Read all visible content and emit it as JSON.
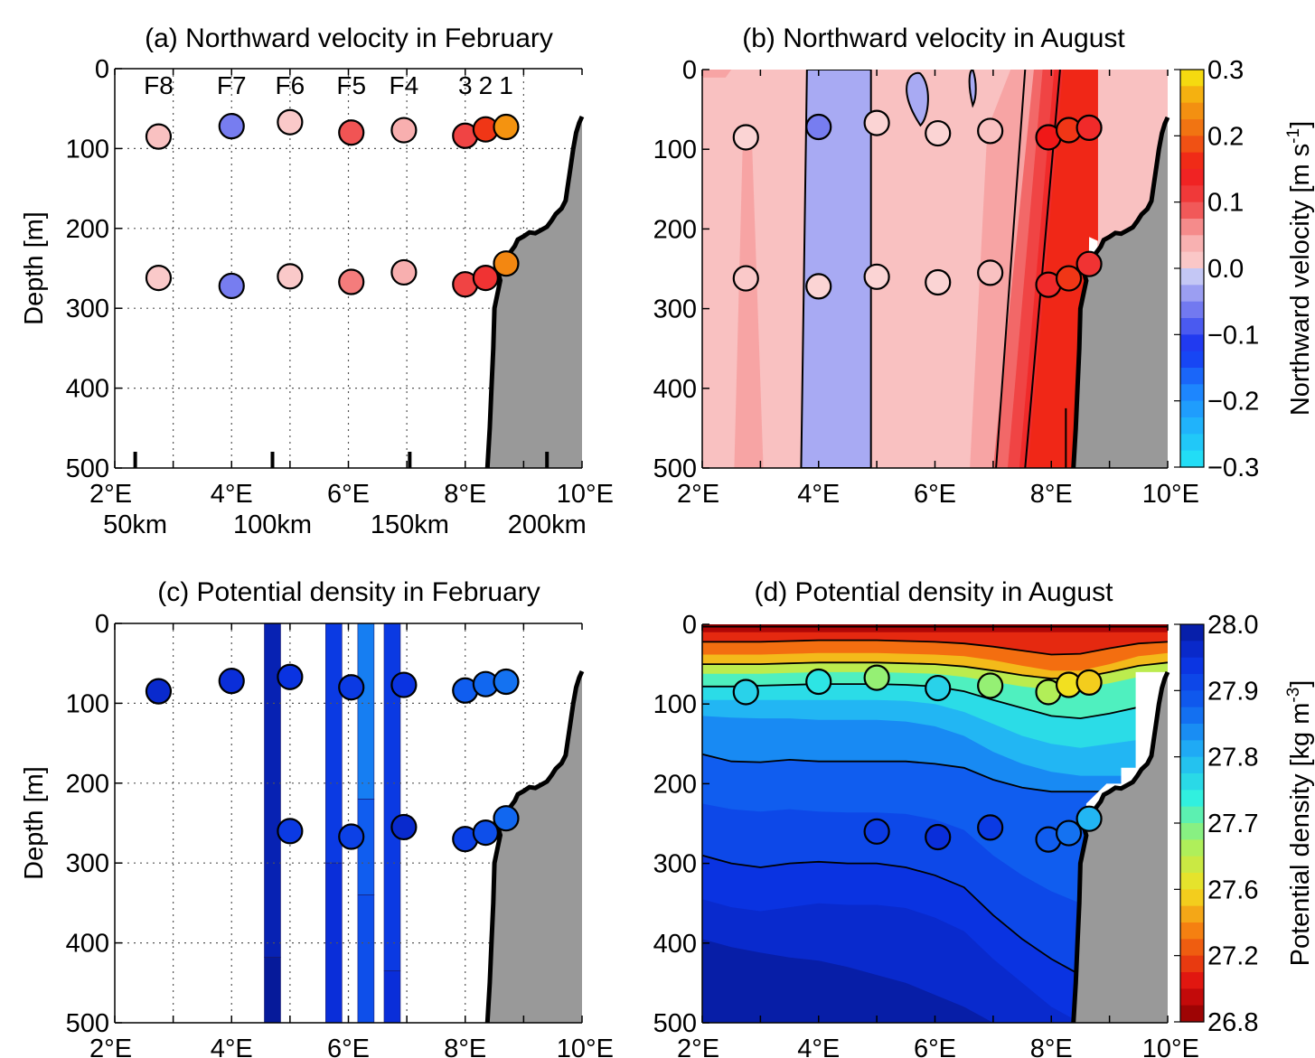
{
  "chart_data": [
    {
      "panel": "a",
      "type": "scatter",
      "title": "(a) Northward velocity in February",
      "ylabel": "Depth [m]",
      "xlim": [
        2,
        10
      ],
      "ylim": [
        500,
        0
      ],
      "xticks": [
        "2°E",
        "4°E",
        "6°E",
        "8°E",
        "10°E"
      ],
      "yticks": [
        "0",
        "100",
        "200",
        "300",
        "400",
        "500"
      ],
      "distance_labels": [
        "50km",
        "100km",
        "150km",
        "200km"
      ],
      "distance_tick_lon": [
        2.35,
        4.7,
        7.05,
        9.4
      ],
      "grid": true,
      "station_labels": [
        {
          "text": "F8",
          "lon": 2.75
        },
        {
          "text": "F7",
          "lon": 4.0
        },
        {
          "text": "F6",
          "lon": 5.0
        },
        {
          "text": "F5",
          "lon": 6.05
        },
        {
          "text": "F4",
          "lon": 6.95
        },
        {
          "text": "3",
          "lon": 8.0
        },
        {
          "text": "2",
          "lon": 8.35
        },
        {
          "text": "1",
          "lon": 8.7
        }
      ],
      "points": [
        {
          "lon": 2.75,
          "depth": 85,
          "value": 0.02
        },
        {
          "lon": 4.0,
          "depth": 72,
          "value": -0.06
        },
        {
          "lon": 5.0,
          "depth": 67,
          "value": 0.01
        },
        {
          "lon": 6.05,
          "depth": 80,
          "value": 0.09
        },
        {
          "lon": 6.95,
          "depth": 77,
          "value": 0.04
        },
        {
          "lon": 8.0,
          "depth": 84,
          "value": 0.1
        },
        {
          "lon": 8.35,
          "depth": 76,
          "value": 0.17
        },
        {
          "lon": 8.7,
          "depth": 73,
          "value": 0.24
        },
        {
          "lon": 2.75,
          "depth": 262,
          "value": 0.01
        },
        {
          "lon": 4.0,
          "depth": 272,
          "value": -0.06
        },
        {
          "lon": 5.0,
          "depth": 260,
          "value": 0.01
        },
        {
          "lon": 6.05,
          "depth": 267,
          "value": 0.07
        },
        {
          "lon": 6.95,
          "depth": 255,
          "value": 0.04
        },
        {
          "lon": 8.0,
          "depth": 270,
          "value": 0.1
        },
        {
          "lon": 8.35,
          "depth": 262,
          "value": 0.12
        },
        {
          "lon": 8.7,
          "depth": 244,
          "value": 0.23
        }
      ]
    },
    {
      "panel": "b",
      "type": "heatmap",
      "title": "(b) Northward velocity in August",
      "xlim": [
        2,
        10
      ],
      "ylim": [
        500,
        0
      ],
      "xticks": [
        "2°E",
        "4°E",
        "6°E",
        "8°E",
        "10°E"
      ],
      "yticks": [
        "0",
        "100",
        "200",
        "300",
        "400",
        "500"
      ],
      "colorbar": {
        "label": "Northward velocity [m s⁻¹]",
        "label_base": "Northward velocity [m s",
        "label_exp": "-1",
        "label_close": "]",
        "ticks": [
          "0.3",
          "0.2",
          "0.1",
          "0.0",
          "−0.1",
          "−0.2",
          "−0.3"
        ],
        "range": [
          -0.3,
          0.3
        ]
      },
      "points": [
        {
          "lon": 2.75,
          "depth": 85,
          "value": 0.0
        },
        {
          "lon": 4.0,
          "depth": 72,
          "value": -0.06
        },
        {
          "lon": 5.0,
          "depth": 67,
          "value": 0.0
        },
        {
          "lon": 6.05,
          "depth": 80,
          "value": 0.0
        },
        {
          "lon": 6.95,
          "depth": 77,
          "value": 0.02
        },
        {
          "lon": 7.95,
          "depth": 85,
          "value": 0.15
        },
        {
          "lon": 8.3,
          "depth": 76,
          "value": 0.17
        },
        {
          "lon": 8.65,
          "depth": 73,
          "value": 0.13
        },
        {
          "lon": 2.75,
          "depth": 262,
          "value": 0.01
        },
        {
          "lon": 4.0,
          "depth": 272,
          "value": 0.0
        },
        {
          "lon": 5.0,
          "depth": 260,
          "value": 0.0
        },
        {
          "lon": 6.05,
          "depth": 267,
          "value": 0.0
        },
        {
          "lon": 6.95,
          "depth": 255,
          "value": 0.02
        },
        {
          "lon": 7.95,
          "depth": 270,
          "value": 0.13
        },
        {
          "lon": 8.3,
          "depth": 262,
          "value": 0.17
        },
        {
          "lon": 8.65,
          "depth": 244,
          "value": 0.12
        }
      ]
    },
    {
      "panel": "c",
      "type": "scatter",
      "title": "(c) Potential density in February",
      "ylabel": "Depth [m]",
      "xlim": [
        2,
        10
      ],
      "ylim": [
        500,
        0
      ],
      "xticks": [
        "2°E",
        "4°E",
        "6°E",
        "8°E",
        "10°E"
      ],
      "yticks": [
        "0",
        "100",
        "200",
        "300",
        "400",
        "500"
      ],
      "grid": true,
      "profiles": [
        {
          "lon": 4.7,
          "segments": [
            {
              "from": 0,
              "to": 418,
              "value": 27.98
            },
            {
              "from": 418,
              "to": 500,
              "value": 28.0
            }
          ]
        },
        {
          "lon": 5.75,
          "segments": [
            {
              "from": 0,
              "to": 300,
              "value": 27.93
            },
            {
              "from": 300,
              "to": 500,
              "value": 27.95
            }
          ]
        },
        {
          "lon": 6.3,
          "segments": [
            {
              "from": 0,
              "to": 220,
              "value": 27.85
            },
            {
              "from": 220,
              "to": 340,
              "value": 27.88
            },
            {
              "from": 340,
              "to": 500,
              "value": 27.9
            }
          ]
        },
        {
          "lon": 6.75,
          "segments": [
            {
              "from": 0,
              "to": 435,
              "value": 27.93
            },
            {
              "from": 435,
              "to": 500,
              "value": 27.95
            }
          ]
        }
      ],
      "points": [
        {
          "lon": 2.75,
          "depth": 85,
          "value": 27.96
        },
        {
          "lon": 4.0,
          "depth": 72,
          "value": 27.95
        },
        {
          "lon": 5.0,
          "depth": 67,
          "value": 27.94
        },
        {
          "lon": 6.05,
          "depth": 80,
          "value": 27.93
        },
        {
          "lon": 6.95,
          "depth": 77,
          "value": 27.94
        },
        {
          "lon": 8.0,
          "depth": 84,
          "value": 27.88
        },
        {
          "lon": 8.35,
          "depth": 76,
          "value": 27.87
        },
        {
          "lon": 8.7,
          "depth": 73,
          "value": 27.86
        },
        {
          "lon": 5.0,
          "depth": 260,
          "value": 27.93
        },
        {
          "lon": 6.05,
          "depth": 267,
          "value": 27.92
        },
        {
          "lon": 6.95,
          "depth": 255,
          "value": 27.96
        },
        {
          "lon": 8.0,
          "depth": 270,
          "value": 27.92
        },
        {
          "lon": 8.35,
          "depth": 262,
          "value": 27.9
        },
        {
          "lon": 8.7,
          "depth": 244,
          "value": 27.87
        }
      ]
    },
    {
      "panel": "d",
      "type": "heatmap",
      "title": "(d) Potential density in August",
      "xlim": [
        2,
        10
      ],
      "ylim": [
        500,
        0
      ],
      "xticks": [
        "2°E",
        "4°E",
        "6°E",
        "8°E",
        "10°E"
      ],
      "yticks": [
        "0",
        "100",
        "200",
        "300",
        "400",
        "500"
      ],
      "colorbar": {
        "label": "Potential density [kg m⁻³]",
        "label_base": "Potential density [kg m",
        "label_exp": "-3",
        "label_close": "]",
        "ticks": [
          "28.0",
          "27.9",
          "27.8",
          "27.7",
          "27.6",
          "27.2",
          "26.8"
        ],
        "range": [
          26.8,
          28.0
        ]
      },
      "points": [
        {
          "lon": 2.75,
          "depth": 85,
          "value": 27.77
        },
        {
          "lon": 4.0,
          "depth": 72,
          "value": 27.75
        },
        {
          "lon": 5.0,
          "depth": 67,
          "value": 27.68
        },
        {
          "lon": 6.05,
          "depth": 80,
          "value": 27.77
        },
        {
          "lon": 6.95,
          "depth": 77,
          "value": 27.68
        },
        {
          "lon": 7.95,
          "depth": 85,
          "value": 27.66
        },
        {
          "lon": 8.3,
          "depth": 76,
          "value": 27.6
        },
        {
          "lon": 8.65,
          "depth": 73,
          "value": 27.55
        },
        {
          "lon": 5.0,
          "depth": 260,
          "value": 27.93
        },
        {
          "lon": 6.05,
          "depth": 267,
          "value": 27.95
        },
        {
          "lon": 6.95,
          "depth": 255,
          "value": 27.93
        },
        {
          "lon": 7.95,
          "depth": 270,
          "value": 27.88
        },
        {
          "lon": 8.3,
          "depth": 262,
          "value": 27.86
        },
        {
          "lon": 8.65,
          "depth": 244,
          "value": 27.8
        }
      ]
    }
  ]
}
